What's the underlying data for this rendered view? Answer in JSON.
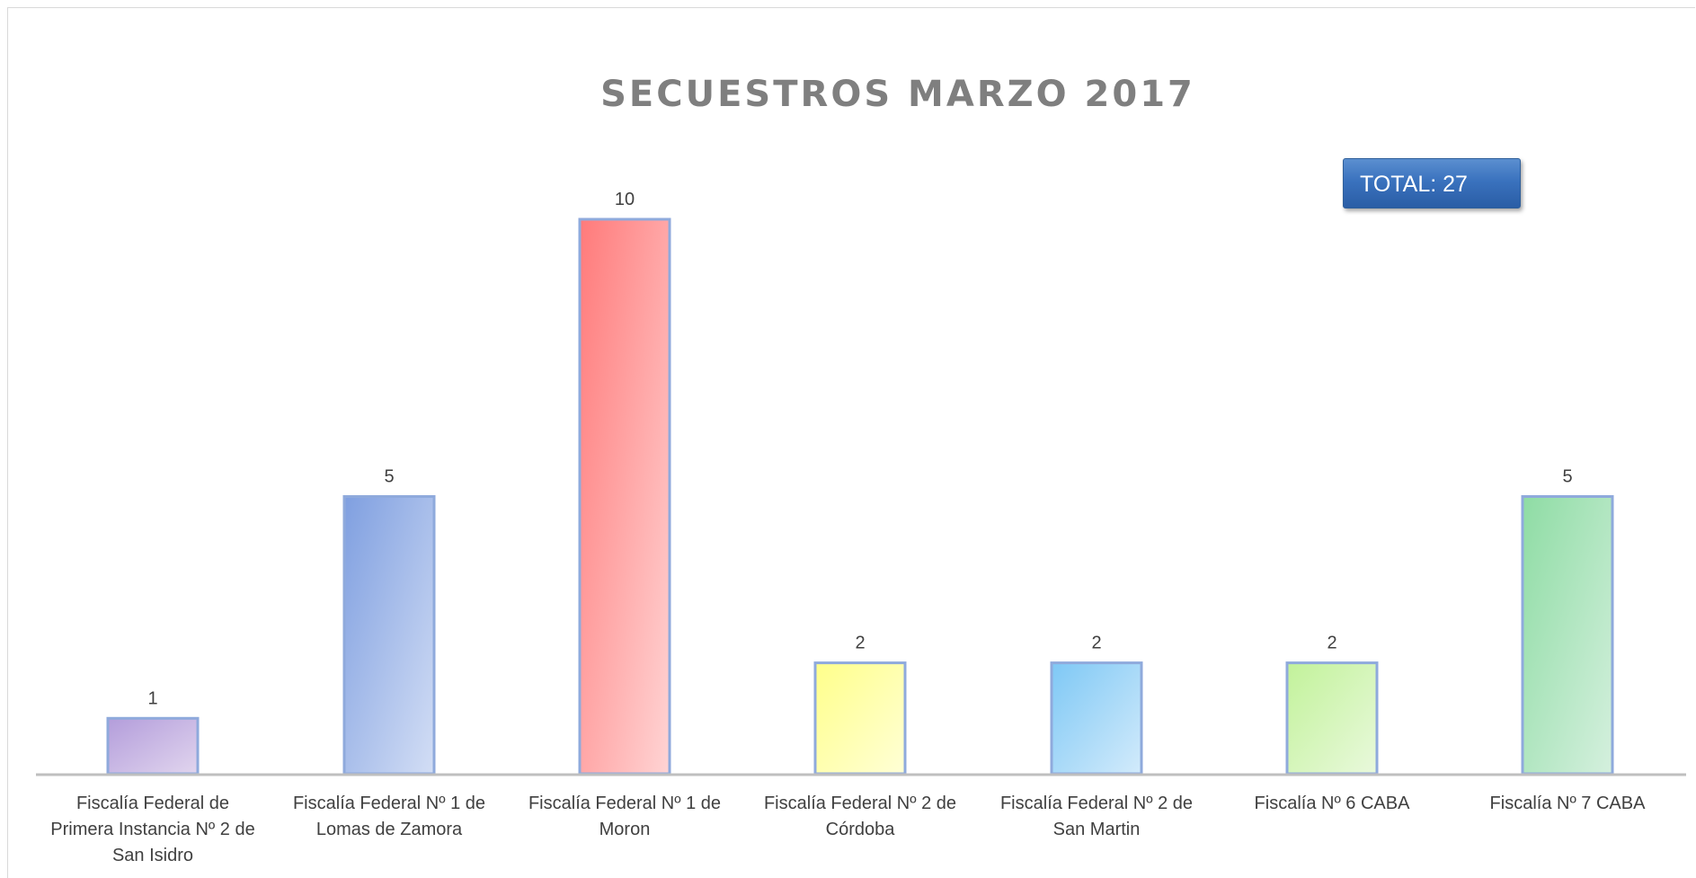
{
  "chart_data": {
    "type": "bar",
    "title": "SECUESTROS MARZO 2017",
    "annotation": "TOTAL: 27",
    "categories": [
      "Fiscalía Federal de Primera Instancia Nº 2 de San Isidro",
      "Fiscalía Federal Nº 1 de Lomas de Zamora",
      "Fiscalía Federal Nº 1 de Moron",
      "Fiscalía Federal Nº 2 de Córdoba",
      "Fiscalía Federal Nº 2 de San Martin",
      "Fiscalía Nº 6 CABA",
      "Fiscalía Nº 7 CABA"
    ],
    "values": [
      1,
      5,
      10,
      2,
      2,
      2,
      5
    ],
    "data_labels": [
      "1",
      "5",
      "10",
      "2",
      "2",
      "2",
      "5"
    ],
    "colors": [
      [
        "#b39ddb",
        "#e1d5ee"
      ],
      [
        "#7f9fe0",
        "#d3def5"
      ],
      [
        "#ff7a7a",
        "#ffd4d4"
      ],
      [
        "#ffff8a",
        "#ffffd6"
      ],
      [
        "#7ec8f5",
        "#d3ebfb"
      ],
      [
        "#c2f29a",
        "#e9f9dc"
      ],
      [
        "#8edca4",
        "#d5f0de"
      ]
    ],
    "border_color": "#8faadc",
    "ylim": [
      0,
      10
    ],
    "xlabel": "",
    "ylabel": "",
    "grid": false,
    "legend": "none"
  }
}
